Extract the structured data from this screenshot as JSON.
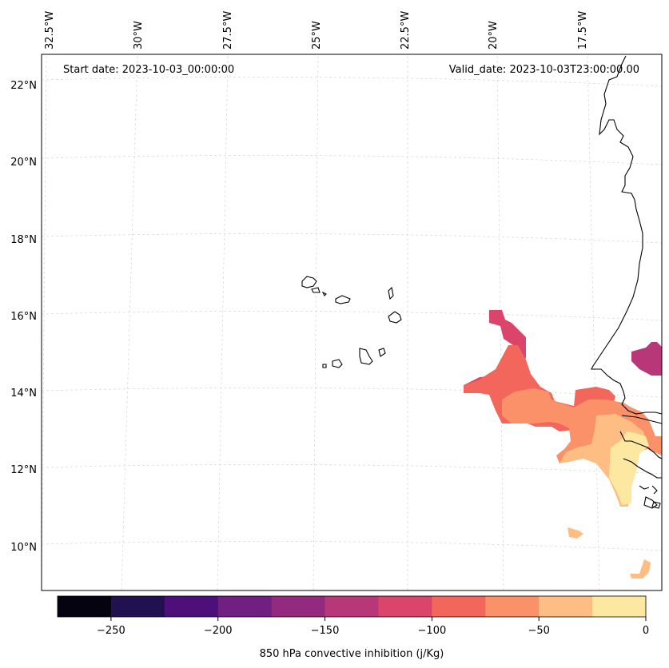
{
  "header": {
    "start_date": "Start date: 2023-10-03_00:00:00",
    "valid_date": "Valid_date: 2023-10-03T23:00:00.00"
  },
  "lon_labels": [
    "32.5°W",
    "30°W",
    "27.5°W",
    "25°W",
    "22.5°W",
    "20°W",
    "17.5°W"
  ],
  "lat_labels": [
    "22°N",
    "20°N",
    "18°N",
    "16°N",
    "14°N",
    "12°N",
    "10°N"
  ],
  "colorbar": {
    "label": "850 hPa convective inhibition (j/Kg)",
    "tick_labels": [
      "−250",
      "−200",
      "−150",
      "−100",
      "−50",
      "0"
    ],
    "range": [
      -275,
      0
    ],
    "colors": [
      "#05030f",
      "#221150",
      "#4f0f7b",
      "#711f81",
      "#932a80",
      "#b83778",
      "#dc456b",
      "#f2665c",
      "#fb9168",
      "#febd82",
      "#fde8a2"
    ]
  },
  "map_colors": {
    "cin_m150_m125": "#b83778",
    "cin_m125_m100": "#dc456b",
    "cin_m100_m75": "#f2665c",
    "cin_m75_m50": "#fb9168",
    "cin_m50_m25": "#febd82",
    "cin_m25_0": "#fde8a2",
    "coast": "#000000",
    "grid": "#d0d0d0"
  }
}
